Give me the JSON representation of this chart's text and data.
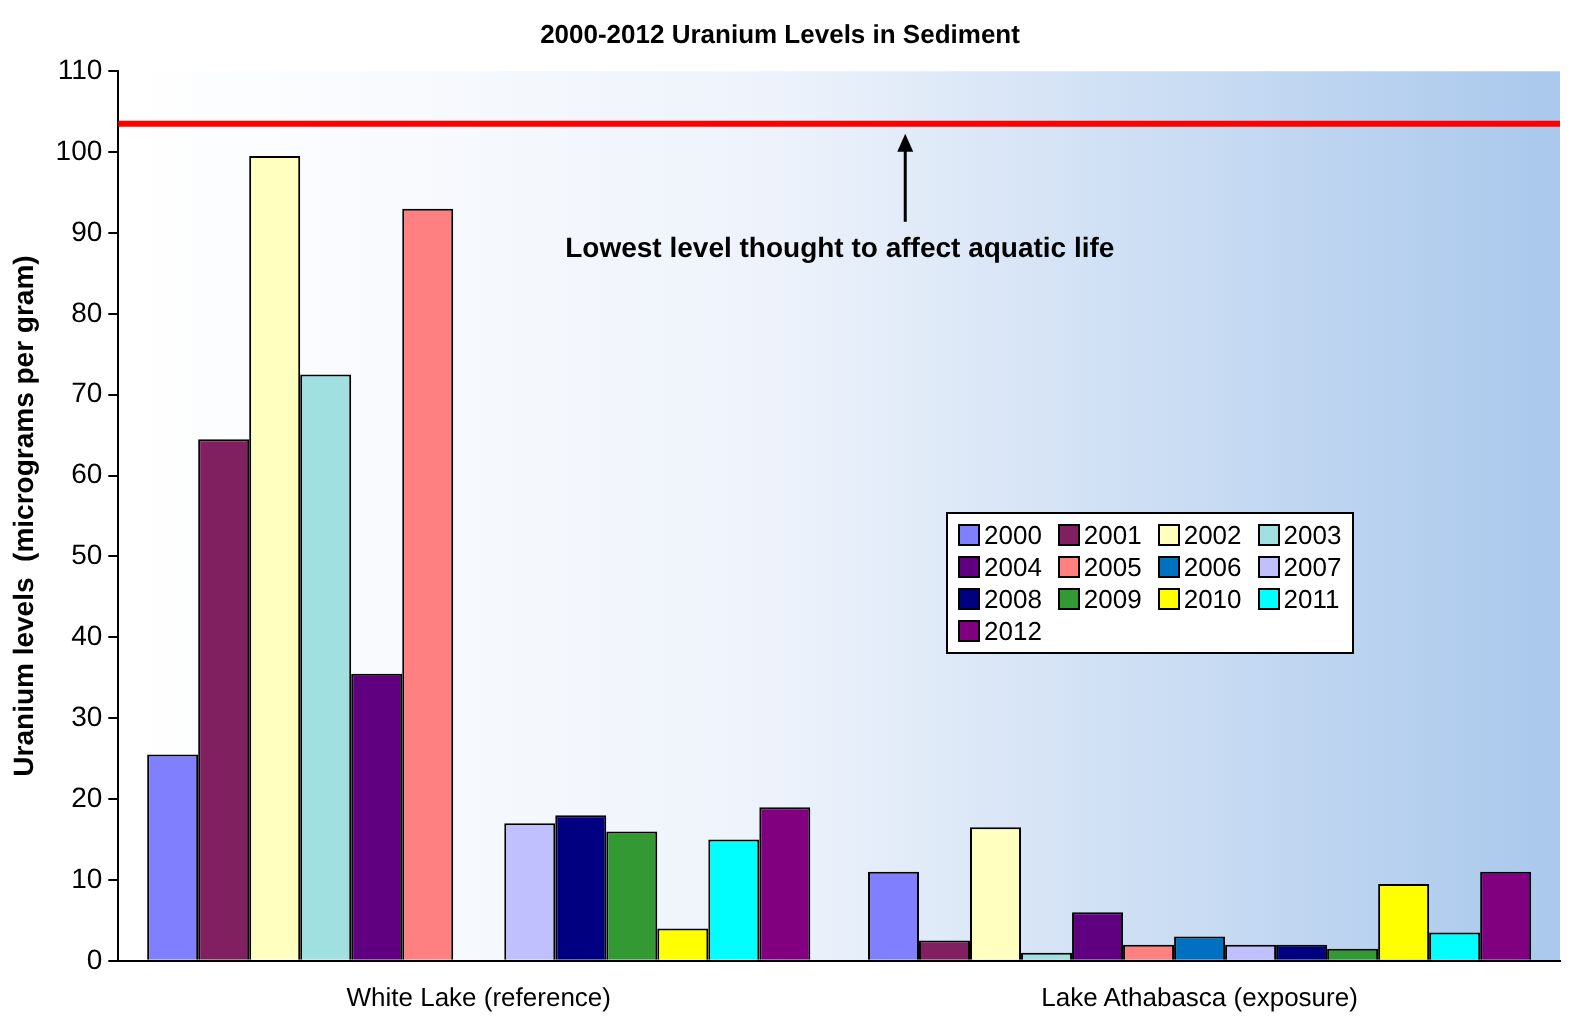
{
  "chart_data": {
    "type": "bar",
    "title": "2000-2012 Uranium Levels in Sediment",
    "ylabel": "Uranium levels  (micrograms per gram)",
    "categories": [
      "White Lake (reference)",
      "Lake Athabasca (exposure)"
    ],
    "series": [
      {
        "name": "2000",
        "color": "#8080ff",
        "values": [
          25.5,
          11
        ]
      },
      {
        "name": "2001",
        "color": "#802060",
        "values": [
          64.5,
          2.5
        ]
      },
      {
        "name": "2002",
        "color": "#ffffc0",
        "values": [
          99.5,
          16.5
        ]
      },
      {
        "name": "2003",
        "color": "#a0e0e0",
        "values": [
          72.5,
          1
        ]
      },
      {
        "name": "2004",
        "color": "#600080",
        "values": [
          35.5,
          6
        ]
      },
      {
        "name": "2005",
        "color": "#ff8080",
        "values": [
          93,
          2
        ]
      },
      {
        "name": "2006",
        "color": "#0070c0",
        "values": [
          null,
          3
        ]
      },
      {
        "name": "2007",
        "color": "#c0c0ff",
        "values": [
          17,
          2
        ]
      },
      {
        "name": "2008",
        "color": "#000080",
        "values": [
          18,
          2
        ]
      },
      {
        "name": "2009",
        "color": "#339933",
        "values": [
          16,
          1.5
        ]
      },
      {
        "name": "2010",
        "color": "#ffff00",
        "values": [
          4,
          9.5
        ]
      },
      {
        "name": "2011",
        "color": "#00ffff",
        "values": [
          15,
          3.5
        ]
      },
      {
        "name": "2012",
        "color": "#800080",
        "values": [
          19,
          11
        ]
      }
    ],
    "ylim": [
      0,
      110
    ],
    "yticks": [
      0,
      10,
      20,
      30,
      40,
      50,
      60,
      70,
      80,
      90,
      100,
      110
    ],
    "grid": false,
    "legend": "right",
    "ref_lines": [
      {
        "axis": "y",
        "value": 103.5,
        "label": "Lowest level thought to affect aquatic life",
        "color": "#ff0000"
      }
    ]
  }
}
